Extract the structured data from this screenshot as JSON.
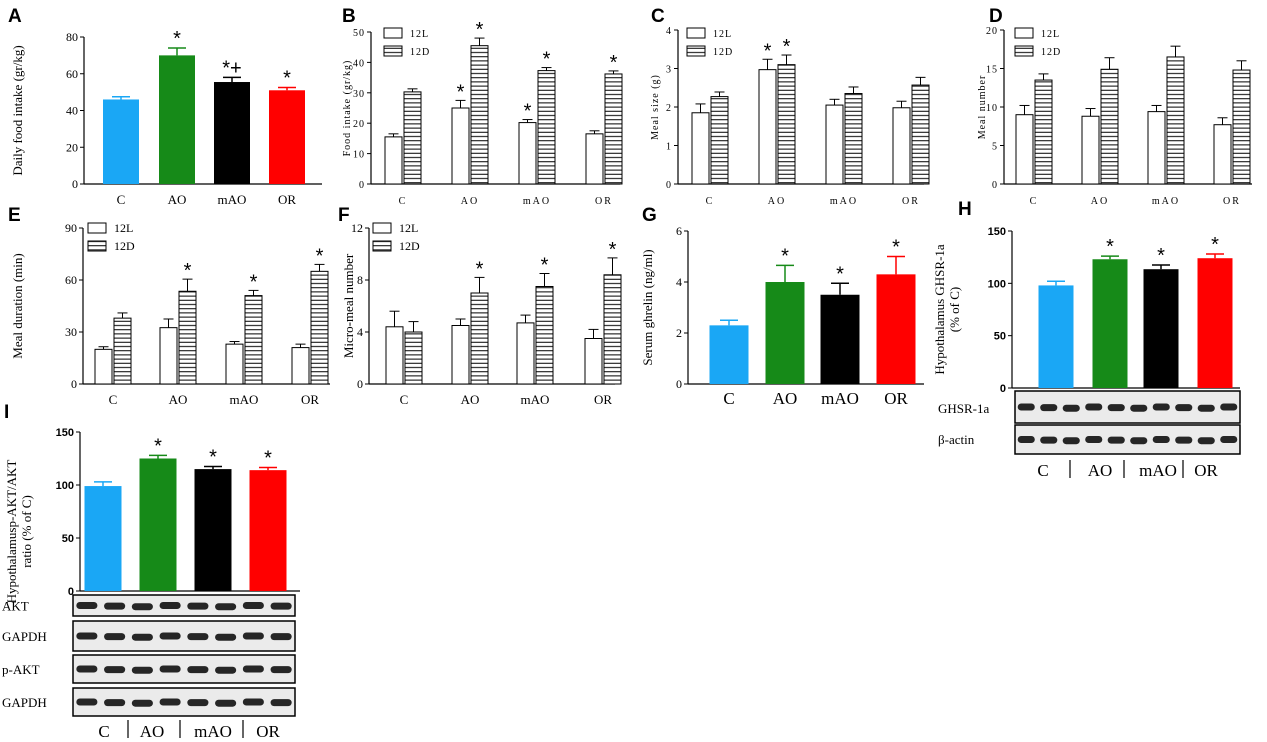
{
  "colors": {
    "C": "#1aa7f5",
    "AO": "#168a18",
    "mAO": "#000000",
    "OR": "#ff0000"
  },
  "chart_data": [
    {
      "panel": "A",
      "type": "bar",
      "ylabel": "Daily food intake (gr/kg)",
      "categories": [
        "C",
        "AO",
        "mAO",
        "OR"
      ],
      "values": [
        46,
        70,
        55.5,
        51
      ],
      "errors": [
        1.5,
        4,
        2.5,
        1.5
      ],
      "ylim": [
        0,
        80
      ],
      "yticks": [
        "0",
        "20",
        "40",
        "60",
        "80"
      ],
      "annotations": [
        "",
        "*",
        "*+",
        "*"
      ]
    },
    {
      "panel": "B",
      "type": "bar",
      "ylabel": "Food intake (gr/kg)",
      "categories": [
        "C",
        "AO",
        "mAO",
        "OR"
      ],
      "series": [
        {
          "name": "12L",
          "values": [
            15.5,
            25,
            20.2,
            16.5
          ],
          "errors": [
            1,
            2.5,
            1,
            1
          ],
          "annotations": [
            "",
            "*",
            "*",
            ""
          ]
        },
        {
          "name": "12D",
          "values": [
            30.3,
            45.5,
            37.3,
            36.2
          ],
          "errors": [
            1,
            2.5,
            1,
            1
          ],
          "annotations": [
            "",
            "*",
            "*",
            "*"
          ]
        }
      ],
      "ylim": [
        0,
        50
      ],
      "yticks": [
        "0",
        "10",
        "20",
        "30",
        "40",
        "50"
      ]
    },
    {
      "panel": "C",
      "type": "bar",
      "ylabel": "Meal size (g)",
      "categories": [
        "C",
        "AO",
        "mAO",
        "OR"
      ],
      "series": [
        {
          "name": "12L",
          "values": [
            1.85,
            2.97,
            2.05,
            1.98
          ],
          "errors": [
            0.23,
            0.27,
            0.15,
            0.17
          ],
          "annotations": [
            "",
            "*",
            "",
            ""
          ]
        },
        {
          "name": "12D",
          "values": [
            2.27,
            3.1,
            2.35,
            2.57
          ],
          "errors": [
            0.12,
            0.25,
            0.17,
            0.2
          ],
          "annotations": [
            "",
            "*",
            "",
            ""
          ]
        }
      ],
      "ylim": [
        0,
        4
      ],
      "yticks": [
        "0",
        "1",
        "2",
        "3",
        "4"
      ]
    },
    {
      "panel": "D",
      "type": "bar",
      "ylabel": "Meal number",
      "categories": [
        "C",
        "AO",
        "mAO",
        "OR"
      ],
      "series": [
        {
          "name": "12L",
          "values": [
            9,
            8.8,
            9.4,
            7.7
          ],
          "errors": [
            1.2,
            1,
            0.8,
            0.9
          ],
          "annotations": [
            "",
            "",
            "",
            ""
          ]
        },
        {
          "name": "12D",
          "values": [
            13.5,
            14.9,
            16.5,
            14.8
          ],
          "errors": [
            0.8,
            1.5,
            1.4,
            1.2
          ],
          "annotations": [
            "",
            "",
            "",
            ""
          ]
        }
      ],
      "ylim": [
        0,
        20
      ],
      "yticks": [
        "0",
        "5",
        "10",
        "15",
        "20"
      ]
    },
    {
      "panel": "E",
      "type": "bar",
      "ylabel": "Meal duration (min)",
      "categories": [
        "C",
        "AO",
        "mAO",
        "OR"
      ],
      "series": [
        {
          "name": "12L",
          "values": [
            20,
            32.5,
            23,
            21
          ],
          "errors": [
            1.5,
            5,
            1.5,
            2
          ],
          "annotations": [
            "",
            "",
            "",
            ""
          ]
        },
        {
          "name": "12D",
          "values": [
            38,
            53.5,
            51,
            65
          ],
          "errors": [
            3,
            7,
            3,
            4
          ],
          "annotations": [
            "",
            "*",
            "*",
            "*"
          ]
        }
      ],
      "ylim": [
        0,
        90
      ],
      "yticks": [
        "0",
        "30",
        "60",
        "90"
      ]
    },
    {
      "panel": "F",
      "type": "bar",
      "ylabel": "Micro-meal number",
      "categories": [
        "C",
        "AO",
        "mAO",
        "OR"
      ],
      "series": [
        {
          "name": "12L",
          "values": [
            4.4,
            4.5,
            4.7,
            3.5
          ],
          "errors": [
            1.2,
            0.5,
            0.6,
            0.7
          ],
          "annotations": [
            "",
            "",
            "",
            ""
          ]
        },
        {
          "name": "12D",
          "values": [
            4,
            7,
            7.5,
            8.4
          ],
          "errors": [
            0.8,
            1.2,
            1,
            1.3
          ],
          "annotations": [
            "",
            "*",
            "*",
            "*"
          ]
        }
      ],
      "ylim": [
        0,
        12
      ],
      "yticks": [
        "0",
        "4",
        "8",
        "12"
      ]
    },
    {
      "panel": "G",
      "type": "bar",
      "ylabel": "Serum ghrelin (ng/ml)",
      "categories": [
        "C",
        "AO",
        "mAO",
        "OR"
      ],
      "values": [
        2.3,
        4,
        3.5,
        4.3
      ],
      "errors": [
        0.2,
        0.65,
        0.45,
        0.7
      ],
      "ylim": [
        0,
        6
      ],
      "yticks": [
        "0",
        "2",
        "4",
        "6"
      ],
      "annotations": [
        "",
        "*",
        "*",
        "*"
      ]
    },
    {
      "panel": "H",
      "type": "bar",
      "ylabel": "Hypothalamus GHSR-1a (% of C)",
      "categories": [
        "C",
        "AO",
        "mAO",
        "OR"
      ],
      "values": [
        98,
        123,
        113.5,
        124
      ],
      "errors": [
        4,
        3,
        4,
        4
      ],
      "ylim": [
        0,
        150
      ],
      "yticks": [
        "0",
        "50",
        "100",
        "150"
      ],
      "annotations": [
        "",
        "*",
        "*",
        "*"
      ],
      "blot_rows": [
        "GHSR-1a",
        "β-actin"
      ]
    },
    {
      "panel": "I",
      "type": "bar",
      "ylabel": "Hypothalamusp-AKT/AKT ratio (% of C)",
      "categories": [
        "C",
        "AO",
        "mAO",
        "OR"
      ],
      "values": [
        99,
        125,
        115,
        114
      ],
      "errors": [
        4,
        3,
        2.5,
        2.5
      ],
      "ylim": [
        0,
        150
      ],
      "yticks": [
        "0",
        "50",
        "100",
        "150"
      ],
      "annotations": [
        "",
        "*",
        "*",
        "*"
      ],
      "blot_rows": [
        "AKT",
        "GAPDH",
        "p-AKT",
        "GAPDH"
      ]
    }
  ]
}
